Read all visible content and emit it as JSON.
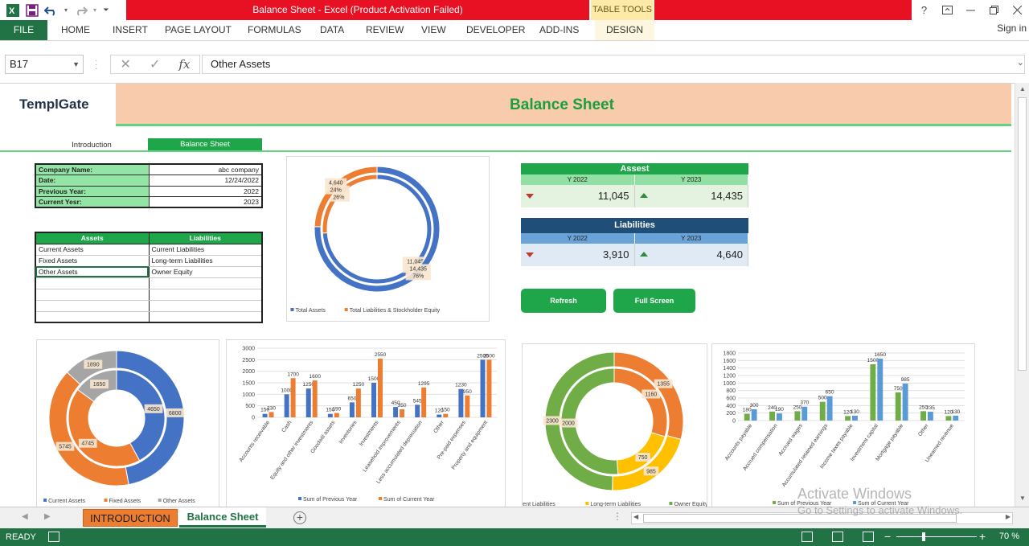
{
  "window": {
    "title": "Balance Sheet -  Excel (Product Activation Failed)",
    "table_tools": "TABLE TOOLS"
  },
  "ribbon": {
    "file": "FILE",
    "tabs": [
      "HOME",
      "INSERT",
      "PAGE LAYOUT",
      "FORMULAS",
      "DATA",
      "REVIEW",
      "VIEW",
      "DEVELOPER",
      "ADD-INS"
    ],
    "design": "DESIGN",
    "sign_in": "Sign in"
  },
  "formula_bar": {
    "name_box": "B17",
    "fx": "fx",
    "value": "Other Assets"
  },
  "sheet": {
    "logo": "TemplGate",
    "title": "Balance Sheet",
    "nav": {
      "intro": "Introduction",
      "balance": "Balance Sheet"
    },
    "info": [
      {
        "k": "Company Name:",
        "v": "abc company"
      },
      {
        "k": "Date:",
        "v": "12/24/2022"
      },
      {
        "k": "Previous Year:",
        "v": "2022"
      },
      {
        "k": "Current Yesr:",
        "v": "2023"
      }
    ],
    "list": {
      "assets_header": "Assets",
      "liab_header": "Liabilities",
      "assets": [
        "Current Assets",
        "Fixed Assets",
        "Other Assets"
      ],
      "liabilities": [
        "Current Liabilities",
        "Long-term Liabilities",
        "Owner Equity"
      ]
    },
    "assets_kpi": {
      "title": "Assest",
      "y1": "Y 2022",
      "y2": "Y 2023",
      "v1": "11,045",
      "v2": "14,435"
    },
    "liab_kpi": {
      "title": "Liabilities",
      "y1": "Y 2022",
      "y2": "Y 2023",
      "v1": "3,910",
      "v2": "4,640"
    },
    "buttons": {
      "refresh": "Refresh",
      "fullscreen": "Full Screen"
    }
  },
  "sheet_tabs": {
    "intro": "INTRODUCTION",
    "balance": "Balance Sheet"
  },
  "status": {
    "ready": "READY",
    "zoom": "70 %"
  },
  "watermark": {
    "line1": "Activate Windows",
    "line2": "Go to Settings to activate Windows."
  },
  "colors": {
    "blue": "#4472c4",
    "orange": "#ed7d31",
    "gray": "#a5a5a5",
    "yellow": "#ffc000",
    "green": "#70ad47",
    "excel_green": "#217346",
    "accent_green": "#1fa64a"
  },
  "chart_data": [
    {
      "type": "donut",
      "title": "",
      "series": [
        {
          "name": "Y 2022",
          "values": [
            11045,
            3910
          ],
          "labels": [
            "11,045\n74%",
            "3,910\n26%"
          ]
        },
        {
          "name": "Y 2023",
          "values": [
            14435,
            4640
          ],
          "labels": [
            "14,435\n76%",
            "4,640\n24%"
          ]
        }
      ],
      "categories": [
        "Total Assets",
        "Total Liabilities & Stockholder Equity"
      ],
      "legend": "bottom"
    },
    {
      "type": "donut",
      "title": "",
      "categories": [
        "Current Assets",
        "Fixed Assets",
        "Other Assets"
      ],
      "series": [
        {
          "name": "Previous Year",
          "values": [
            4650,
            4745,
            1650
          ]
        },
        {
          "name": "Current Year",
          "values": [
            6800,
            5745,
            1890
          ]
        }
      ],
      "legend": "bottom"
    },
    {
      "type": "bar",
      "title": "",
      "categories": [
        "Accounts receivable",
        "Cash",
        "Equity and other investments",
        "Goodwill assets",
        "Inventories",
        "Investments",
        "Leasehold improvements",
        "Less accumulated depreciation",
        "Other",
        "Pre-paid expenses",
        "Property and equipment"
      ],
      "series": [
        {
          "name": "Sum of Previous Year",
          "values": [
            150,
            1000,
            1250,
            150,
            650,
            1500,
            450,
            545,
            120,
            1230,
            2500
          ]
        },
        {
          "name": "Sum of Current Year",
          "values": [
            230,
            1700,
            1600,
            190,
            1250,
            2550,
            350,
            1295,
            150,
            950,
            2500
          ]
        }
      ],
      "ylim": [
        0,
        3000
      ],
      "yticks": [
        0,
        500,
        1000,
        1500,
        2000,
        2500,
        3000
      ],
      "legend": "bottom"
    },
    {
      "type": "donut",
      "title": "",
      "categories": [
        "Currrent Liabilities",
        "Long-term Liabilities",
        "Owner Equity"
      ],
      "series": [
        {
          "name": "Previous Year",
          "values": [
            1160,
            750,
            2000
          ]
        },
        {
          "name": "Current Year",
          "values": [
            1355,
            985,
            2300
          ]
        }
      ],
      "legend": "bottom"
    },
    {
      "type": "bar",
      "title": "",
      "categories": [
        "Accounts payable",
        "Accrued compensation",
        "Accrued wages",
        "Accumulated retained earnings",
        "Income taxes payable",
        "Investment capital",
        "Mortgage payable",
        "Other",
        "Unearned revenue"
      ],
      "series": [
        {
          "name": "Sum of Previous Year",
          "values": [
            180,
            240,
            250,
            500,
            120,
            1500,
            750,
            250,
            120
          ]
        },
        {
          "name": "Sum of Current Year",
          "values": [
            300,
            190,
            370,
            650,
            130,
            1650,
            985,
            235,
            130
          ]
        }
      ],
      "ylim": [
        0,
        1800
      ],
      "yticks": [
        0,
        200,
        400,
        600,
        800,
        1000,
        1200,
        1400,
        1600,
        1800
      ],
      "legend": "bottom"
    }
  ]
}
